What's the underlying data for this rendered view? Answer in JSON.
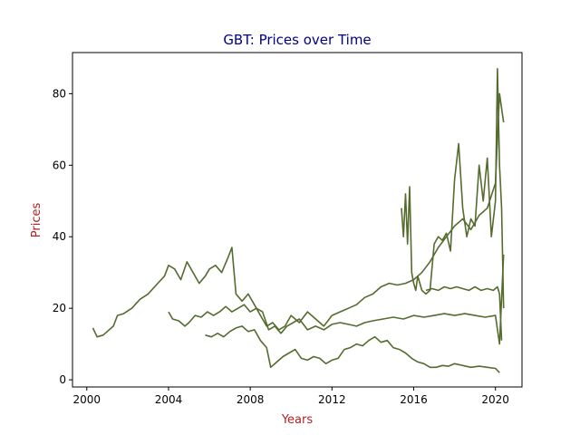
{
  "chart_data": {
    "type": "line",
    "title": "GBT: Prices over Time",
    "xlabel": "Years",
    "ylabel": "Prices",
    "xlim": [
      1999.3,
      2021.3
    ],
    "ylim": [
      -2,
      91.5
    ],
    "xticks": [
      2000,
      2004,
      2008,
      2012,
      2016,
      2020
    ],
    "xtick_labels": [
      "2000",
      "2004",
      "2008",
      "2012",
      "2016",
      "2020"
    ],
    "yticks": [
      0,
      20,
      40,
      60,
      80
    ],
    "ytick_labels": [
      "0",
      "20",
      "40",
      "60",
      "80"
    ],
    "grid": false,
    "legend": "none",
    "colors": {
      "series": "#556b2f",
      "title": "#00008b",
      "axis_label": "#b22222"
    },
    "series": [
      {
        "x": [
          2000.3,
          2000.5,
          2000.8,
          2001.0,
          2001.3,
          2001.5,
          2001.8,
          2002.2,
          2002.6,
          2003.0,
          2003.4,
          2003.8,
          2004.0,
          2004.3,
          2004.6,
          2004.9,
          2005.2,
          2005.5,
          2005.8,
          2006.0,
          2006.3,
          2006.6,
          2006.9,
          2007.1,
          2007.3,
          2007.6,
          2007.9,
          2008.2,
          2008.5,
          2008.8,
          2009.1,
          2009.4,
          2009.7,
          2010.0,
          2010.4,
          2010.8,
          2011.2,
          2011.6,
          2012.0,
          2012.4,
          2012.8,
          2013.2,
          2013.6,
          2014.0,
          2014.4,
          2014.8,
          2015.2,
          2015.6,
          2016.0,
          2016.4,
          2016.8,
          2017.2,
          2017.6,
          2018.0,
          2018.4,
          2018.8,
          2019.2,
          2019.6,
          2020.0,
          2020.2,
          2020.4
        ],
        "values": [
          14.5,
          12.0,
          12.5,
          13.5,
          15.0,
          18.0,
          18.5,
          20.0,
          22.5,
          24.0,
          26.5,
          29.0,
          32.0,
          31.0,
          28.0,
          33.0,
          30.0,
          27.0,
          29.0,
          31.0,
          32.0,
          30.0,
          34.0,
          37.0,
          24.0,
          22.0,
          24.0,
          21.0,
          18.0,
          15.0,
          16.0,
          14.0,
          15.0,
          18.0,
          16.0,
          19.0,
          17.0,
          15.0,
          18.0,
          19.0,
          20.0,
          21.0,
          23.0,
          24.0,
          26.0,
          27.0,
          26.5,
          27.0,
          28.0,
          30.0,
          33.0,
          37.0,
          40.0,
          43.0,
          45.0,
          42.0,
          46.0,
          48.0,
          55.0,
          80.0,
          72.0
        ]
      },
      {
        "x": [
          2004.0,
          2004.2,
          2004.5,
          2004.8,
          2005.0,
          2005.3,
          2005.6,
          2005.9,
          2006.2,
          2006.5,
          2006.8,
          2007.1,
          2007.4,
          2007.7,
          2008.0,
          2008.3,
          2008.6,
          2008.9,
          2009.2,
          2009.5,
          2009.8,
          2010.1,
          2010.4,
          2010.8,
          2011.2,
          2011.6,
          2012.0,
          2012.4,
          2012.8,
          2013.2,
          2013.6,
          2014.0,
          2014.5,
          2015.0,
          2015.5,
          2016.0,
          2016.5,
          2017.0,
          2017.5,
          2018.0,
          2018.5,
          2019.0,
          2019.5,
          2020.0,
          2020.2,
          2020.4
        ],
        "values": [
          19.0,
          17.0,
          16.5,
          15.0,
          16.0,
          18.0,
          17.5,
          19.0,
          18.0,
          19.0,
          20.5,
          19.0,
          20.0,
          21.0,
          19.0,
          20.0,
          19.0,
          14.0,
          15.0,
          13.0,
          15.0,
          16.0,
          17.0,
          14.0,
          15.0,
          14.0,
          15.5,
          16.0,
          15.5,
          15.0,
          16.0,
          16.5,
          17.0,
          17.5,
          17.0,
          18.0,
          17.5,
          18.0,
          18.5,
          18.0,
          18.5,
          18.0,
          17.5,
          18.0,
          10.0,
          35.0
        ]
      },
      {
        "x": [
          2005.8,
          2006.1,
          2006.4,
          2006.7,
          2007.0,
          2007.3,
          2007.6,
          2007.9,
          2008.2,
          2008.5,
          2008.8,
          2009.0,
          2009.3,
          2009.6,
          2009.9,
          2010.2,
          2010.5,
          2010.8,
          2011.1,
          2011.4,
          2011.7,
          2012.0,
          2012.3,
          2012.6,
          2012.9,
          2013.2,
          2013.5,
          2013.8,
          2014.1,
          2014.4,
          2014.7,
          2015.0,
          2015.3,
          2015.6,
          2015.9,
          2016.2,
          2016.5,
          2016.8,
          2017.1,
          2017.4,
          2017.7,
          2018.0,
          2018.4,
          2018.8,
          2019.2,
          2019.6,
          2020.0,
          2020.2
        ],
        "values": [
          12.5,
          12.0,
          13.0,
          12.0,
          13.5,
          14.5,
          15.0,
          13.5,
          14.0,
          11.0,
          9.0,
          3.5,
          5.0,
          6.5,
          7.5,
          8.5,
          6.0,
          5.5,
          6.5,
          6.0,
          4.5,
          5.5,
          6.0,
          8.5,
          9.0,
          10.0,
          9.5,
          11.0,
          12.0,
          10.5,
          11.0,
          9.0,
          8.5,
          7.5,
          6.0,
          5.0,
          4.5,
          3.5,
          3.5,
          4.0,
          3.8,
          4.5,
          4.0,
          3.5,
          3.8,
          3.5,
          3.2,
          2.0
        ]
      },
      {
        "x": [
          2015.4,
          2015.5,
          2015.6,
          2015.7,
          2015.8,
          2015.9,
          2016.0,
          2016.1,
          2016.2,
          2016.4,
          2016.6,
          2016.8,
          2017.0,
          2017.2,
          2017.4,
          2017.6,
          2017.8,
          2018.0,
          2018.2,
          2018.4,
          2018.6,
          2018.8,
          2019.0,
          2019.2,
          2019.4,
          2019.6,
          2019.8,
          2020.0,
          2020.1,
          2020.2,
          2020.3,
          2020.4
        ],
        "values": [
          48.0,
          40.0,
          52.0,
          38.0,
          54.0,
          30.0,
          27.0,
          25.0,
          29.0,
          25.0,
          24.0,
          25.0,
          38.0,
          40.0,
          39.0,
          41.0,
          36.0,
          56.0,
          66.0,
          48.0,
          40.0,
          45.0,
          43.0,
          60.0,
          50.0,
          62.0,
          40.0,
          50.0,
          87.0,
          60.0,
          48.0,
          20.0
        ]
      },
      {
        "x": [
          2016.6,
          2016.9,
          2017.2,
          2017.5,
          2017.8,
          2018.1,
          2018.4,
          2018.7,
          2019.0,
          2019.3,
          2019.6,
          2019.9,
          2020.1,
          2020.2,
          2020.3
        ],
        "values": [
          25.0,
          25.5,
          25.0,
          26.0,
          25.5,
          26.0,
          25.5,
          25.0,
          26.0,
          25.0,
          25.5,
          25.0,
          26.0,
          24.0,
          11.0
        ]
      }
    ]
  }
}
